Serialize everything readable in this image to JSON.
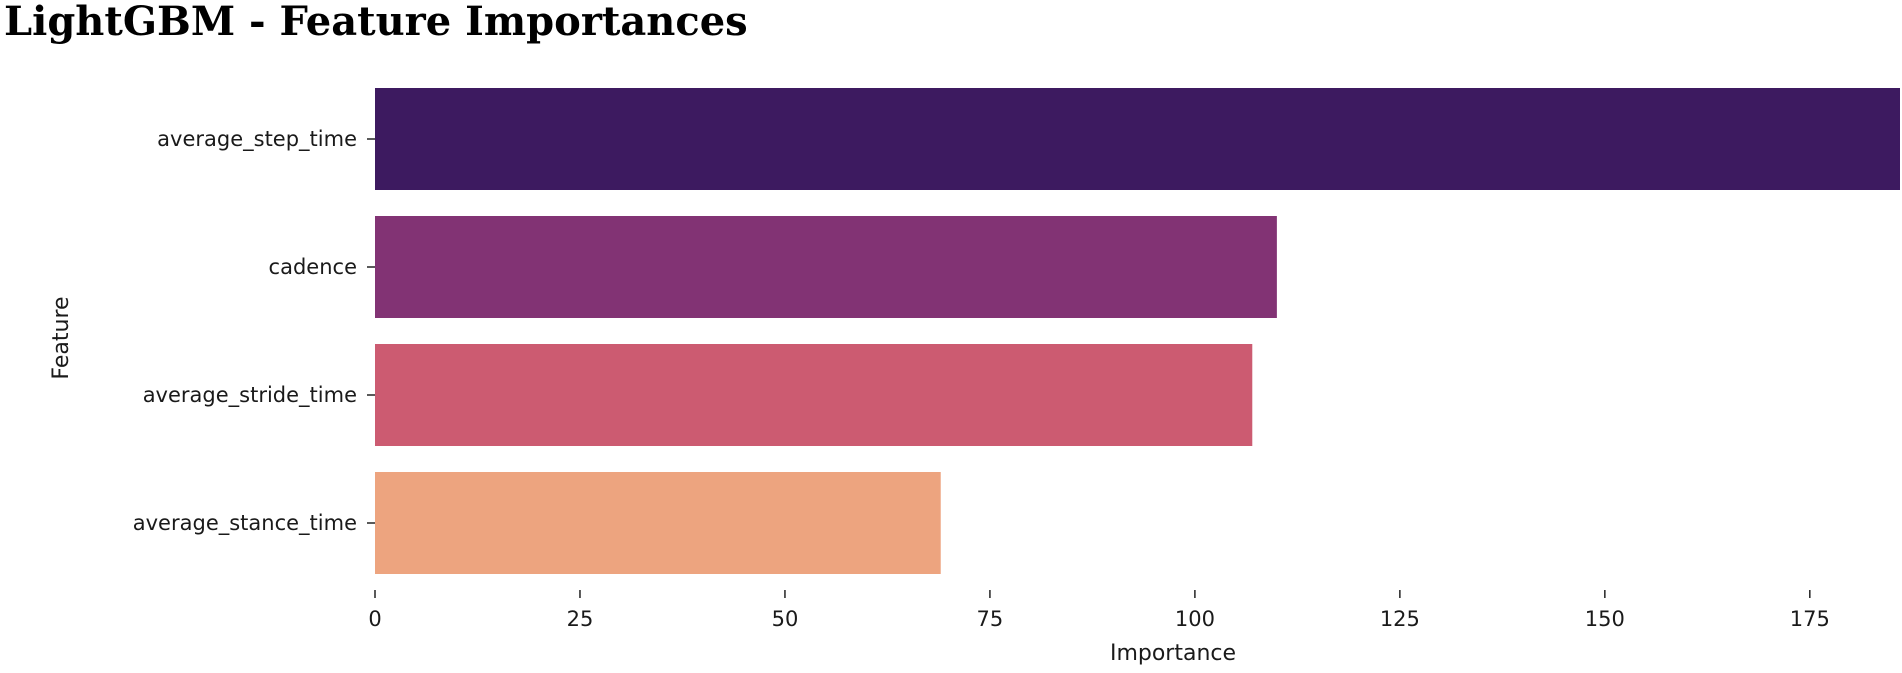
{
  "chart_data": {
    "type": "bar",
    "orientation": "horizontal",
    "title": "LightGBM - Feature Importances",
    "xlabel": "Importance",
    "ylabel": "Feature",
    "categories": [
      "average_step_time",
      "cadence",
      "average_stride_time",
      "average_stance_time"
    ],
    "values": [
      186,
      110,
      107,
      69
    ],
    "colors": [
      "#3d1a60",
      "#823374",
      "#cc5b71",
      "#eda47f"
    ],
    "xlim": [
      0,
      186
    ],
    "xticks": [
      0,
      25,
      50,
      75,
      100,
      125,
      150,
      175
    ],
    "grid": false,
    "legend": "none"
  }
}
